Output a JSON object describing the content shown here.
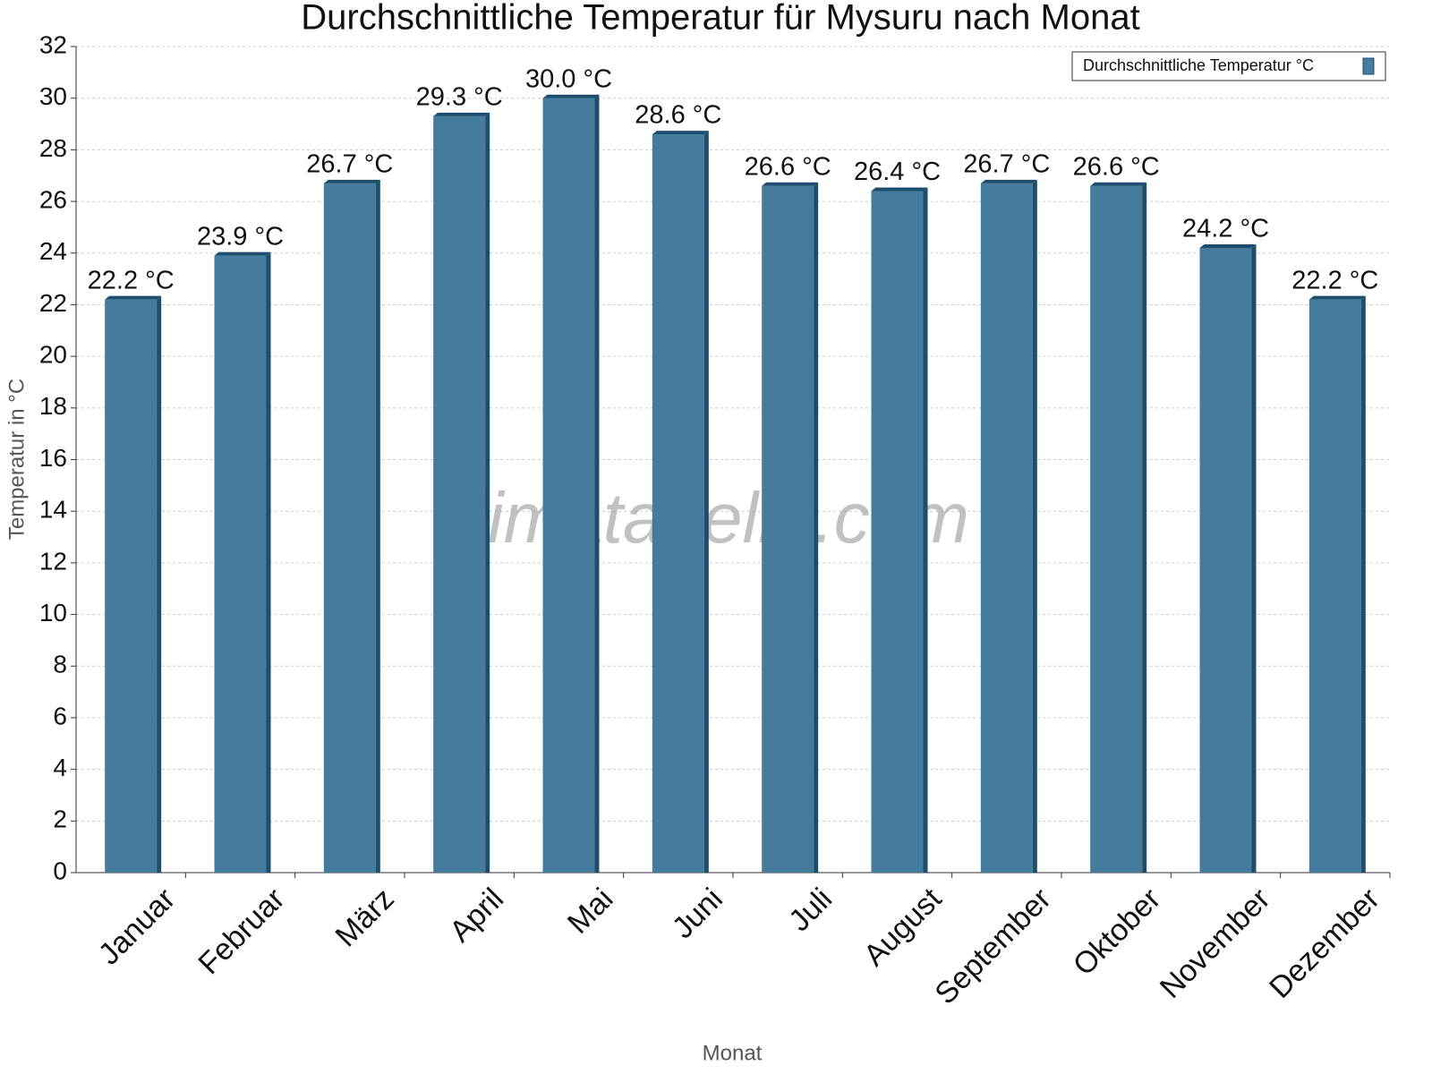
{
  "chart_data": {
    "type": "bar",
    "title": "Durchschnittliche Temperatur für Mysuru nach Monat",
    "x_label": "Monat",
    "y_label": "Temperatur in °C",
    "watermark": "klimatabelle.com",
    "categories": [
      "Januar",
      "Februar",
      "März",
      "April",
      "Mai",
      "Juni",
      "Juli",
      "August",
      "September",
      "Oktober",
      "November",
      "Dezember"
    ],
    "series": [
      {
        "name": "Durchschnittliche Temperatur °C",
        "color": "#457b9d",
        "values": [
          22.2,
          23.9,
          26.7,
          29.3,
          30.0,
          28.6,
          26.6,
          26.4,
          26.7,
          26.6,
          24.2,
          22.2
        ],
        "value_labels": [
          "22.2 °C",
          "23.9 °C",
          "26.7 °C",
          "29.3 °C",
          "30.0 °C",
          "28.6 °C",
          "26.6 °C",
          "26.4 °C",
          "26.7 °C",
          "26.6 °C",
          "24.2 °C",
          "22.2 °C"
        ]
      }
    ],
    "ylim": [
      0,
      32
    ],
    "yticks": [
      0,
      2,
      4,
      6,
      8,
      10,
      12,
      14,
      16,
      18,
      20,
      22,
      24,
      26,
      28,
      30,
      32
    ],
    "grid": true,
    "legend": "upper right"
  }
}
